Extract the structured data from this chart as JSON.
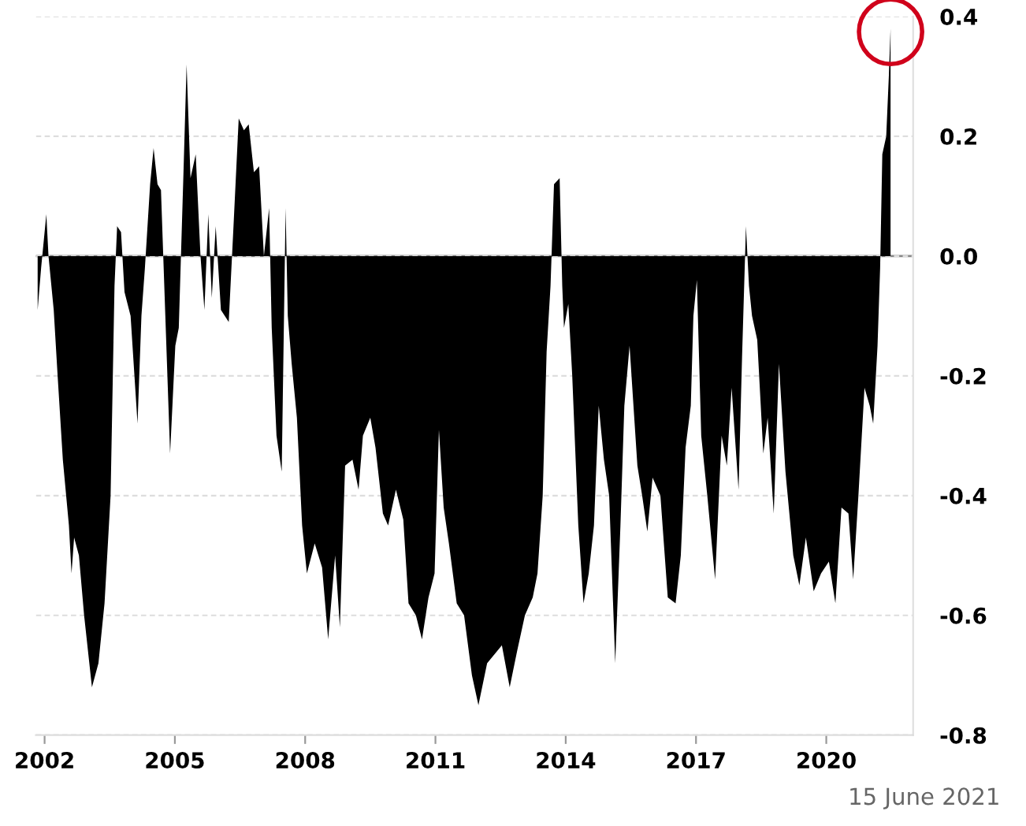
{
  "chart_data": {
    "type": "area",
    "x": [
      2001.84,
      2001.92,
      2002.04,
      2002.09,
      2002.21,
      2002.3,
      2002.42,
      2002.56,
      2002.62,
      2002.68,
      2002.79,
      2002.91,
      2003.09,
      2003.24,
      2003.38,
      2003.52,
      2003.61,
      2003.67,
      2003.76,
      2003.84,
      2003.98,
      2004.14,
      2004.23,
      2004.31,
      2004.43,
      2004.51,
      2004.6,
      2004.68,
      2004.78,
      2004.89,
      2005.01,
      2005.09,
      2005.19,
      2005.27,
      2005.36,
      2005.48,
      2005.59,
      2005.68,
      2005.77,
      2005.85,
      2005.94,
      2006.06,
      2006.24,
      2006.35,
      2006.47,
      2006.59,
      2006.7,
      2006.82,
      2006.94,
      2007.05,
      2007.17,
      2007.23,
      2007.34,
      2007.46,
      2007.55,
      2007.6,
      2007.69,
      2007.81,
      2007.93,
      2008.04,
      2008.22,
      2008.39,
      2008.53,
      2008.69,
      2008.8,
      2008.92,
      2009.09,
      2009.23,
      2009.33,
      2009.5,
      2009.62,
      2009.79,
      2009.91,
      2010.09,
      2010.26,
      2010.38,
      2010.55,
      2010.69,
      2010.84,
      2010.98,
      2011.08,
      2011.19,
      2011.31,
      2011.49,
      2011.66,
      2011.84,
      2011.99,
      2012.19,
      2012.53,
      2012.71,
      2012.88,
      2013.06,
      2013.24,
      2013.35,
      2013.47,
      2013.56,
      2013.65,
      2013.73,
      2013.86,
      2013.92,
      2013.96,
      2014.06,
      2014.15,
      2014.29,
      2014.41,
      2014.53,
      2014.65,
      2014.76,
      2014.88,
      2015.0,
      2015.14,
      2015.26,
      2015.35,
      2015.47,
      2015.65,
      2015.76,
      2015.88,
      2016.0,
      2016.18,
      2016.35,
      2016.53,
      2016.65,
      2016.76,
      2016.88,
      2016.94,
      2017.02,
      2017.12,
      2017.26,
      2017.44,
      2017.59,
      2017.71,
      2017.82,
      2017.98,
      2018.06,
      2018.15,
      2018.22,
      2018.29,
      2018.41,
      2018.55,
      2018.65,
      2018.79,
      2018.91,
      2019.06,
      2019.24,
      2019.38,
      2019.53,
      2019.71,
      2019.88,
      2020.06,
      2020.21,
      2020.35,
      2020.51,
      2020.62,
      2020.74,
      2020.88,
      2021.0,
      2021.08,
      2021.18,
      2021.24,
      2021.29,
      2021.38,
      2021.44,
      2021.48
    ],
    "series": [
      {
        "color": "#000000",
        "values": [
          -0.09,
          -0.02,
          0.07,
          0.0,
          -0.09,
          -0.2,
          -0.34,
          -0.45,
          -0.53,
          -0.47,
          -0.5,
          -0.6,
          -0.72,
          -0.68,
          -0.58,
          -0.4,
          -0.05,
          0.05,
          0.04,
          -0.06,
          -0.1,
          -0.28,
          -0.1,
          -0.02,
          0.12,
          0.18,
          0.12,
          0.11,
          -0.1,
          -0.33,
          -0.15,
          -0.12,
          0.12,
          0.32,
          0.13,
          0.17,
          0.0,
          -0.09,
          0.07,
          -0.07,
          0.05,
          -0.09,
          -0.11,
          0.05,
          0.23,
          0.21,
          0.22,
          0.14,
          0.15,
          0.0,
          0.08,
          -0.12,
          -0.3,
          -0.36,
          0.08,
          -0.1,
          -0.18,
          -0.27,
          -0.45,
          -0.53,
          -0.48,
          -0.52,
          -0.64,
          -0.5,
          -0.62,
          -0.35,
          -0.34,
          -0.39,
          -0.3,
          -0.27,
          -0.32,
          -0.43,
          -0.45,
          -0.39,
          -0.44,
          -0.58,
          -0.6,
          -0.64,
          -0.57,
          -0.53,
          -0.29,
          -0.42,
          -0.48,
          -0.58,
          -0.6,
          -0.7,
          -0.75,
          -0.68,
          -0.65,
          -0.72,
          -0.66,
          -0.6,
          -0.57,
          -0.53,
          -0.4,
          -0.16,
          -0.05,
          0.12,
          0.13,
          -0.05,
          -0.12,
          -0.08,
          -0.2,
          -0.45,
          -0.58,
          -0.53,
          -0.45,
          -0.25,
          -0.34,
          -0.4,
          -0.68,
          -0.45,
          -0.25,
          -0.15,
          -0.35,
          -0.4,
          -0.46,
          -0.37,
          -0.4,
          -0.57,
          -0.58,
          -0.5,
          -0.32,
          -0.25,
          -0.1,
          -0.04,
          -0.3,
          -0.4,
          -0.54,
          -0.3,
          -0.35,
          -0.22,
          -0.39,
          -0.17,
          0.05,
          -0.05,
          -0.1,
          -0.14,
          -0.33,
          -0.27,
          -0.43,
          -0.18,
          -0.36,
          -0.5,
          -0.55,
          -0.47,
          -0.56,
          -0.53,
          -0.51,
          -0.58,
          -0.42,
          -0.43,
          -0.54,
          -0.4,
          -0.22,
          -0.25,
          -0.28,
          -0.15,
          -0.02,
          0.17,
          0.2,
          0.3,
          0.38
        ]
      }
    ],
    "xlim": [
      2001.8,
      2022.0
    ],
    "xticks": [
      2002,
      2005,
      2008,
      2011,
      2014,
      2017,
      2020
    ],
    "ylim": [
      -0.8,
      0.4
    ],
    "yticks": [
      {
        "value": 0.4,
        "label": "0.4"
      },
      {
        "value": 0.2,
        "label": "0.2"
      },
      {
        "value": 0.0,
        "label": "0.0"
      },
      {
        "value": -0.2,
        "label": "-0.2"
      },
      {
        "value": -0.4,
        "label": "-0.4"
      },
      {
        "value": -0.6,
        "label": "-0.6"
      },
      {
        "value": -0.8,
        "label": "-0.8"
      }
    ],
    "grid": "y",
    "annotations": [
      "15 June 2021"
    ]
  }
}
